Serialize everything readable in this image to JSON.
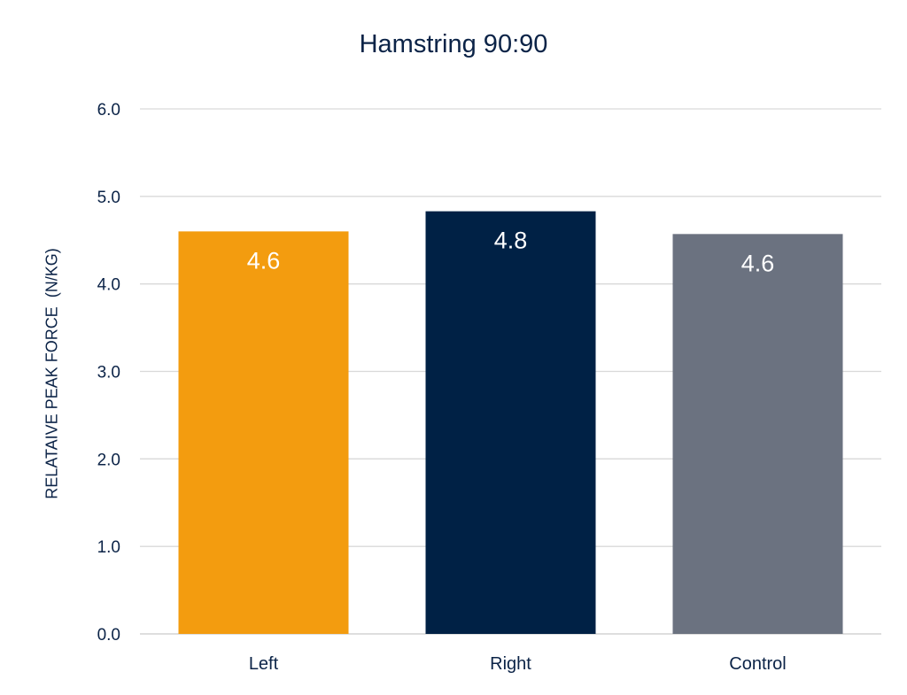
{
  "chart_data": {
    "type": "bar",
    "title": "Hamstring 90:90",
    "xlabel": "",
    "ylabel": "RELATAIVE PEAK FORCE  (N/KG)",
    "categories": [
      "Left",
      "Right",
      "Control"
    ],
    "values": [
      4.6,
      4.83,
      4.57
    ],
    "data_labels": [
      "4.6",
      "4.8",
      "4.6"
    ],
    "colors": [
      "#f39c0f",
      "#002145",
      "#6b7280"
    ],
    "ylim": [
      0,
      6
    ],
    "yticks": [
      "0.0",
      "1.0",
      "2.0",
      "3.0",
      "4.0",
      "5.0",
      "6.0"
    ],
    "grid": true,
    "legend": "none"
  }
}
